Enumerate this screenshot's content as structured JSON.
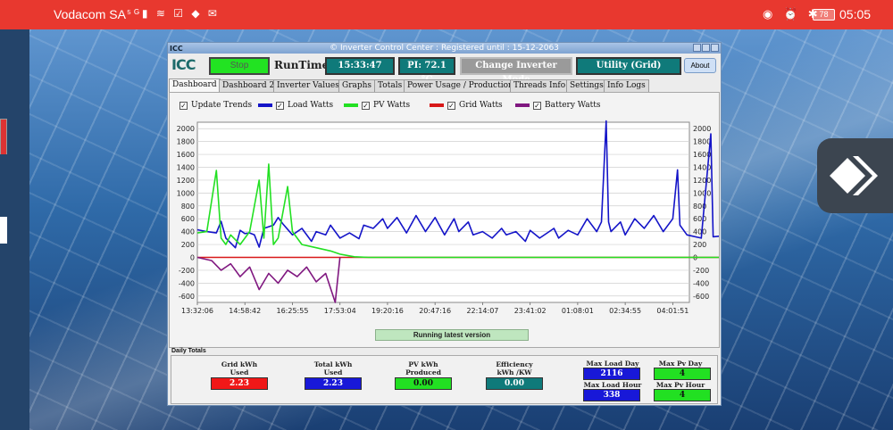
{
  "status_bar": {
    "carrier": "Vodacom SA",
    "battery": "78",
    "time": "05:05"
  },
  "window": {
    "title": "© Inverter Control Center : Registered until : 15-12-2063",
    "logo": "ICC"
  },
  "toolbar": {
    "stop_label": "Stop",
    "runtime_label": "RunTime",
    "runtime_value": "15:33:47",
    "pi_temp": "PI: 72.1 °C",
    "change_mode_label": "Change Inverter Mode",
    "mode_value": "Utility (Grid)",
    "about_label": "About"
  },
  "tabs": [
    {
      "label": "Dashboard",
      "active": true
    },
    {
      "label": "Dashboard 2"
    },
    {
      "label": "Inverter Values"
    },
    {
      "label": "Graphs"
    },
    {
      "label": "Totals"
    },
    {
      "label": "Power Usage / Production"
    },
    {
      "label": "Threads Info"
    },
    {
      "label": "Settings"
    },
    {
      "label": "Info Logs"
    }
  ],
  "legend": {
    "update_trends": "Update Trends",
    "load_watts": "Load Watts",
    "pv_watts": "PV Watts",
    "grid_watts": "Grid Watts",
    "battery_watts": "Battery Watts"
  },
  "colors": {
    "load": "#1414c8",
    "pv": "#22e022",
    "grid": "#d81818",
    "battery": "#801880"
  },
  "chart_data": {
    "type": "line",
    "title": "",
    "xlabel": "",
    "ylabel": "",
    "ylim": [
      -700,
      2100
    ],
    "yticks": [
      -600,
      -400,
      -200,
      0,
      200,
      400,
      600,
      800,
      1000,
      1200,
      1400,
      1600,
      1800,
      2000
    ],
    "xticks": [
      "13:32:06",
      "14:58:42",
      "16:25:55",
      "17:53:04",
      "19:20:16",
      "20:47:16",
      "22:14:07",
      "23:41:02",
      "01:08:01",
      "02:34:55",
      "04:01:51"
    ],
    "grid": true,
    "series": [
      {
        "name": "Load Watts",
        "values": [
          [
            0,
            430
          ],
          [
            0.2,
            400
          ],
          [
            0.4,
            380
          ],
          [
            0.5,
            560
          ],
          [
            0.6,
            300
          ],
          [
            0.8,
            150
          ],
          [
            0.9,
            420
          ],
          [
            1.0,
            370
          ],
          [
            1.1,
            380
          ],
          [
            1.2,
            350
          ],
          [
            1.3,
            160
          ],
          [
            1.4,
            450
          ],
          [
            1.6,
            500
          ],
          [
            1.7,
            620
          ],
          [
            1.8,
            520
          ],
          [
            2.0,
            350
          ],
          [
            2.2,
            450
          ],
          [
            2.4,
            250
          ],
          [
            2.5,
            400
          ],
          [
            2.7,
            350
          ],
          [
            2.8,
            500
          ],
          [
            3.0,
            300
          ],
          [
            3.2,
            380
          ],
          [
            3.4,
            290
          ],
          [
            3.5,
            500
          ],
          [
            3.7,
            450
          ],
          [
            3.9,
            600
          ],
          [
            4.0,
            450
          ],
          [
            4.2,
            620
          ],
          [
            4.4,
            380
          ],
          [
            4.6,
            650
          ],
          [
            4.8,
            400
          ],
          [
            5.0,
            620
          ],
          [
            5.2,
            350
          ],
          [
            5.4,
            600
          ],
          [
            5.5,
            400
          ],
          [
            5.7,
            550
          ],
          [
            5.8,
            350
          ],
          [
            6.0,
            400
          ],
          [
            6.2,
            300
          ],
          [
            6.4,
            450
          ],
          [
            6.5,
            350
          ],
          [
            6.7,
            400
          ],
          [
            6.9,
            250
          ],
          [
            7.0,
            420
          ],
          [
            7.2,
            300
          ],
          [
            7.4,
            400
          ],
          [
            7.5,
            450
          ],
          [
            7.6,
            300
          ],
          [
            7.8,
            420
          ],
          [
            8.0,
            350
          ],
          [
            8.2,
            600
          ],
          [
            8.4,
            400
          ],
          [
            8.5,
            550
          ],
          [
            8.6,
            2120
          ],
          [
            8.65,
            550
          ],
          [
            8.7,
            400
          ],
          [
            8.9,
            550
          ],
          [
            9.0,
            350
          ],
          [
            9.2,
            600
          ],
          [
            9.4,
            450
          ],
          [
            9.6,
            650
          ],
          [
            9.8,
            400
          ],
          [
            10.0,
            600
          ],
          [
            10.1,
            1360
          ],
          [
            10.15,
            500
          ],
          [
            10.3,
            350
          ],
          [
            10.6,
            300
          ],
          [
            10.8,
            1920
          ],
          [
            10.85,
            320
          ],
          [
            11.0,
            330
          ]
        ]
      },
      {
        "name": "PV Watts",
        "values": [
          [
            0,
            380
          ],
          [
            0.2,
            400
          ],
          [
            0.4,
            1350
          ],
          [
            0.5,
            300
          ],
          [
            0.6,
            200
          ],
          [
            0.7,
            350
          ],
          [
            0.9,
            200
          ],
          [
            1.1,
            400
          ],
          [
            1.3,
            1200
          ],
          [
            1.4,
            300
          ],
          [
            1.5,
            1450
          ],
          [
            1.6,
            200
          ],
          [
            1.7,
            300
          ],
          [
            1.9,
            1100
          ],
          [
            2.0,
            400
          ],
          [
            2.2,
            200
          ],
          [
            2.5,
            150
          ],
          [
            2.8,
            100
          ],
          [
            3.0,
            50
          ],
          [
            3.3,
            10
          ],
          [
            3.6,
            0
          ],
          [
            5.0,
            0
          ],
          [
            8.0,
            0
          ],
          [
            11.0,
            0
          ]
        ]
      },
      {
        "name": "Battery Watts",
        "values": [
          [
            0,
            0
          ],
          [
            0.3,
            -50
          ],
          [
            0.5,
            -200
          ],
          [
            0.7,
            -100
          ],
          [
            0.9,
            -300
          ],
          [
            1.1,
            -150
          ],
          [
            1.3,
            -500
          ],
          [
            1.5,
            -250
          ],
          [
            1.7,
            -400
          ],
          [
            1.9,
            -200
          ],
          [
            2.1,
            -300
          ],
          [
            2.3,
            -150
          ],
          [
            2.5,
            -380
          ],
          [
            2.7,
            -250
          ],
          [
            2.9,
            -700
          ],
          [
            3.0,
            0
          ]
        ]
      },
      {
        "name": "Grid Watts",
        "values": [
          [
            0,
            0
          ],
          [
            11.0,
            0
          ]
        ]
      }
    ]
  },
  "status_message": "Running  latest version",
  "daily_totals": {
    "title": "Daily Totals",
    "grid_kwh_label": "Grid kWh\nUsed",
    "grid_kwh_value": "2.23",
    "total_kwh_label": "Total kWh\nUsed",
    "total_kwh_value": "2.23",
    "pv_kwh_label": "PV kWh\nProduced",
    "pv_kwh_value": "0.00",
    "efficiency_label": "Efficiency\nkWh /KW",
    "efficiency_value": "0.00",
    "max_load_day_label": "Max Load Day",
    "max_load_day_value": "2116",
    "max_load_hour_label": "Max Load Hour",
    "max_load_hour_value": "338",
    "max_pv_day_label": "Max Pv Day",
    "max_pv_day_value": "4",
    "max_pv_hour_label": "Max Pv Hour",
    "max_pv_hour_value": "4"
  }
}
